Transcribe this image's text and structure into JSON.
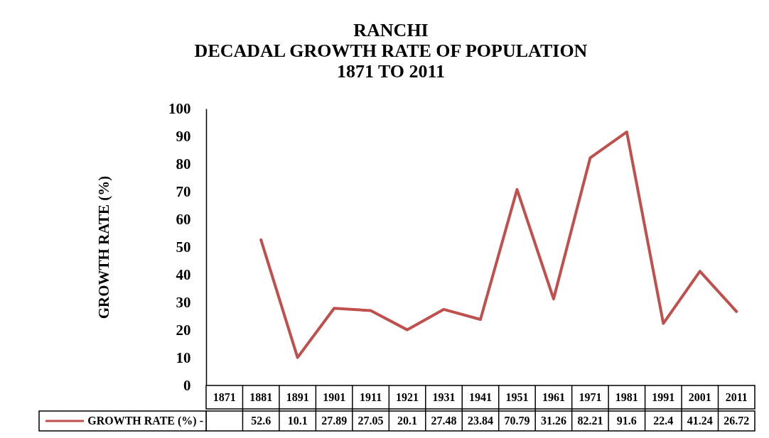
{
  "chart_data": {
    "type": "line",
    "title": "RANCHI\nDECADAL GROWTH RATE OF POPULATION\n1871 TO 2011",
    "ylabel": "GROWTH RATE (%)",
    "categories": [
      "1871",
      "1881",
      "1891",
      "1901",
      "1911",
      "1921",
      "1931",
      "1941",
      "1951",
      "1961",
      "1971",
      "1981",
      "1991",
      "2001",
      "2011"
    ],
    "series": [
      {
        "name": "GROWTH RATE (%) -",
        "color": "#c0504d",
        "values": [
          null,
          52.6,
          10.1,
          27.89,
          27.05,
          20.1,
          27.48,
          23.84,
          70.79,
          31.26,
          82.21,
          91.6,
          22.4,
          41.24,
          26.72
        ]
      }
    ],
    "ylim": [
      0,
      100
    ],
    "yticks": [
      0,
      10,
      20,
      30,
      40,
      50,
      60,
      70,
      80,
      90,
      100
    ],
    "data_labels": true,
    "legend": "bottom left"
  }
}
